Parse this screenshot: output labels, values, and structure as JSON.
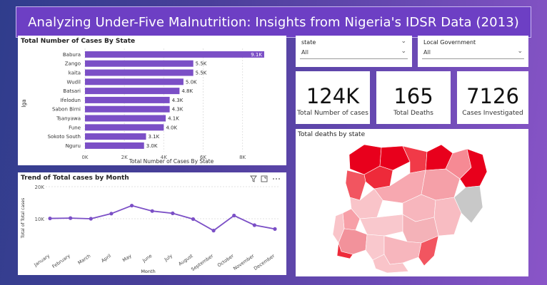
{
  "header": {
    "title": "Analyzing Under-Five Malnutrition: Insights from Nigeria's IDSR Data (2013)"
  },
  "slicers": [
    {
      "label": "state",
      "value": "All"
    },
    {
      "label": "Local Government",
      "value": "All"
    }
  ],
  "cards": [
    {
      "value": "124K",
      "caption": "Total Number of cases"
    },
    {
      "value": "165",
      "caption": "Total Deaths"
    },
    {
      "value": "7126",
      "caption": "Cases Investigated"
    }
  ],
  "map": {
    "title": "Total deaths by state"
  },
  "chart_data": [
    {
      "type": "bar",
      "orientation": "horizontal",
      "title": "Total Number of Cases By State",
      "xlabel": "Total Number of Cases By State",
      "ylabel": "lga",
      "categories": [
        "Babura",
        "Zango",
        "kaita",
        "Wudil",
        "Batsari",
        "Ifelodun",
        "Sabon Birni",
        "Tsanyawa",
        "Fune",
        "Sokoto South",
        "Nguru"
      ],
      "values": [
        9100,
        5500,
        5500,
        5000,
        4800,
        4300,
        4300,
        4100,
        4000,
        3100,
        3000
      ],
      "data_labels": [
        "9.1K",
        "5.5K",
        "5.5K",
        "5.0K",
        "4.8K",
        "4.3K",
        "4.3K",
        "4.1K",
        "4.0K",
        "3.1K",
        "3.0K"
      ],
      "xticks": [
        0,
        2000,
        4000,
        6000,
        8000
      ],
      "xtick_labels": [
        "0K",
        "2K",
        "4K",
        "6K",
        "8K"
      ],
      "xlim": [
        0,
        9500
      ],
      "color": "#7b4fc6"
    },
    {
      "type": "line",
      "title": "Trend of Total cases by Month",
      "xlabel": "Month",
      "ylabel": "Total of Total cases",
      "categories": [
        "January",
        "February",
        "March",
        "April",
        "May",
        "June",
        "July",
        "August",
        "September",
        "October",
        "November",
        "December"
      ],
      "values": [
        10100,
        10200,
        10000,
        11600,
        14100,
        12400,
        11700,
        9900,
        6300,
        11000,
        8000,
        6800
      ],
      "yticks": [
        10000,
        20000
      ],
      "ytick_labels": [
        "10K",
        "20K"
      ],
      "ylim": [
        0,
        20000
      ],
      "color": "#7b4fc6"
    }
  ],
  "icons": {
    "filter": "filter-icon",
    "focus": "focus-mode-icon",
    "more": "more-options-icon"
  }
}
